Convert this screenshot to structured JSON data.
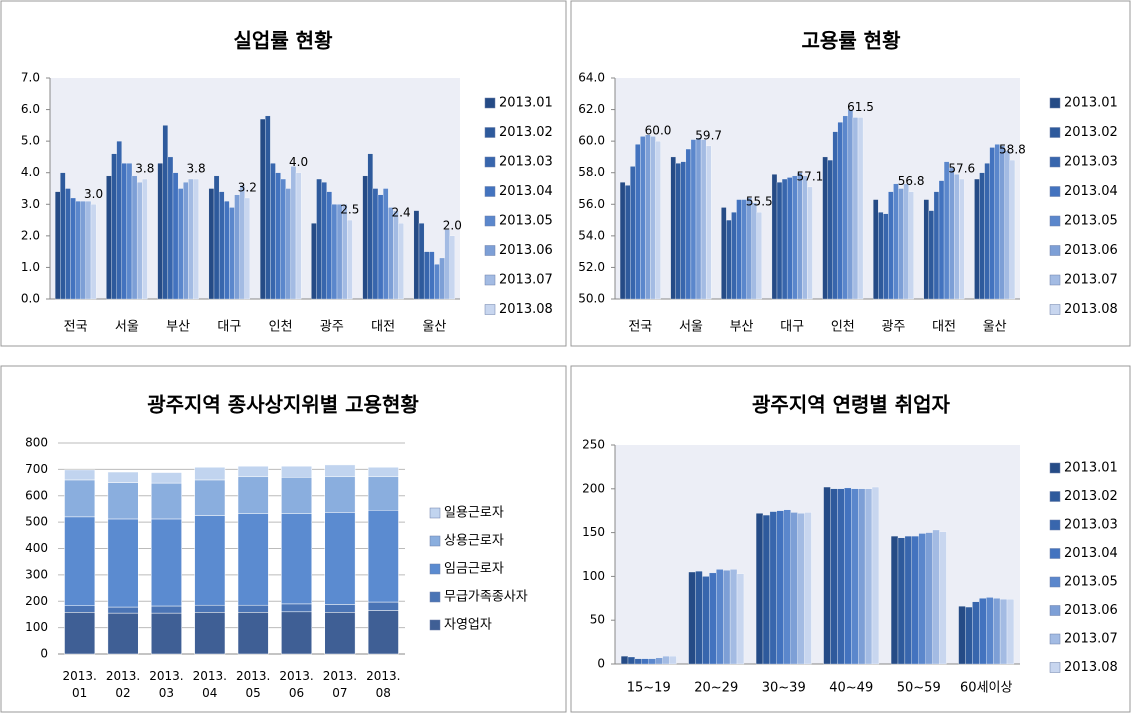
{
  "chart_data": [
    {
      "type": "bar",
      "title": "실업률 현황",
      "categories": [
        "전국",
        "서울",
        "부산",
        "대구",
        "인천",
        "광주",
        "대전",
        "울산"
      ],
      "series": [
        {
          "name": "2013.01",
          "color": "#254b86",
          "values": [
            3.4,
            3.9,
            4.3,
            3.5,
            5.7,
            2.4,
            3.9,
            2.8
          ]
        },
        {
          "name": "2013.02",
          "color": "#2e5a9c",
          "values": [
            4.0,
            4.6,
            5.5,
            3.9,
            5.8,
            3.8,
            4.6,
            2.4
          ]
        },
        {
          "name": "2013.03",
          "color": "#3866ad",
          "values": [
            3.5,
            5.0,
            4.5,
            3.4,
            4.3,
            3.7,
            3.5,
            1.5
          ]
        },
        {
          "name": "2013.04",
          "color": "#4373bf",
          "values": [
            3.2,
            4.3,
            4.0,
            3.1,
            4.0,
            3.4,
            3.3,
            1.5
          ]
        },
        {
          "name": "2013.05",
          "color": "#5b87cc",
          "values": [
            3.1,
            4.3,
            3.5,
            2.9,
            3.8,
            3.0,
            3.5,
            1.1
          ]
        },
        {
          "name": "2013.06",
          "color": "#7d9fd6",
          "values": [
            3.1,
            3.9,
            3.7,
            3.3,
            3.5,
            3.0,
            2.9,
            1.3
          ]
        },
        {
          "name": "2013.07",
          "color": "#a3bbe3",
          "values": [
            3.1,
            3.7,
            3.8,
            3.6,
            4.2,
            3.0,
            2.8,
            2.2
          ]
        },
        {
          "name": "2013.08",
          "color": "#c8d6ef",
          "values": [
            3.0,
            3.8,
            3.8,
            3.2,
            4.0,
            2.5,
            2.4,
            2.0
          ],
          "value_labels": [
            "3.0",
            "3.8",
            "3.8",
            "3.2",
            "4.0",
            "2.5",
            "2.4",
            "2.0"
          ]
        }
      ],
      "ylim": [
        0,
        7
      ],
      "yticks": [
        {
          "value": 0,
          "label": "0.0"
        },
        {
          "value": 1,
          "label": "1.0"
        },
        {
          "value": 2,
          "label": "2.0"
        },
        {
          "value": 3,
          "label": "3.0"
        },
        {
          "value": 4,
          "label": "4.0"
        },
        {
          "value": 5,
          "label": "5.0"
        },
        {
          "value": 6,
          "label": "6.0"
        },
        {
          "value": 7,
          "label": "7.0"
        }
      ],
      "legend": "right"
    },
    {
      "type": "bar",
      "title": "고용률 현황",
      "categories": [
        "전국",
        "서울",
        "부산",
        "대구",
        "인천",
        "광주",
        "대전",
        "울산"
      ],
      "series": [
        {
          "name": "2013.01",
          "color": "#254b86",
          "values": [
            57.4,
            59.0,
            55.8,
            57.9,
            59.0,
            56.3,
            56.3,
            57.6
          ]
        },
        {
          "name": "2013.02",
          "color": "#2e5a9c",
          "values": [
            57.2,
            58.6,
            55.0,
            57.4,
            58.8,
            55.5,
            55.6,
            58.0
          ]
        },
        {
          "name": "2013.03",
          "color": "#3866ad",
          "values": [
            58.4,
            58.7,
            55.5,
            57.6,
            60.6,
            55.4,
            56.8,
            58.6
          ]
        },
        {
          "name": "2013.04",
          "color": "#4373bf",
          "values": [
            59.8,
            59.5,
            56.3,
            57.7,
            61.2,
            56.8,
            57.5,
            59.6
          ]
        },
        {
          "name": "2013.05",
          "color": "#5b87cc",
          "values": [
            60.3,
            60.1,
            56.3,
            57.8,
            61.6,
            57.3,
            58.7,
            59.8
          ]
        },
        {
          "name": "2013.06",
          "color": "#7d9fd6",
          "values": [
            60.4,
            60.2,
            56.4,
            58.0,
            62.0,
            57.0,
            58.3,
            59.7
          ]
        },
        {
          "name": "2013.07",
          "color": "#a3bbe3",
          "values": [
            60.3,
            60.1,
            56.1,
            57.8,
            61.5,
            57.3,
            57.9,
            59.4
          ]
        },
        {
          "name": "2013.08",
          "color": "#c8d6ef",
          "values": [
            60.0,
            59.7,
            55.5,
            57.1,
            61.5,
            56.8,
            57.6,
            58.8
          ],
          "value_labels": [
            "60.0",
            "59.7",
            "55.5",
            "57.1",
            "61.5",
            "56.8",
            "57.6",
            "58.8"
          ]
        }
      ],
      "ylim": [
        50,
        64
      ],
      "yticks": [
        {
          "value": 50,
          "label": "50.0"
        },
        {
          "value": 52,
          "label": "52.0"
        },
        {
          "value": 54,
          "label": "54.0"
        },
        {
          "value": 56,
          "label": "56.0"
        },
        {
          "value": 58,
          "label": "58.0"
        },
        {
          "value": 60,
          "label": "60.0"
        },
        {
          "value": 62,
          "label": "62.0"
        },
        {
          "value": 64,
          "label": "64.0"
        }
      ],
      "legend": "right"
    },
    {
      "type": "bar",
      "stacked": true,
      "title": "광주지역 종사상지위별 고용현황",
      "categories": [
        "2013. 01",
        "2013. 02",
        "2013. 03",
        "2013. 04",
        "2013. 05",
        "2013. 06",
        "2013. 07",
        "2013. 08"
      ],
      "series": [
        {
          "name": "자영업자",
          "color": "#3f5f95",
          "values": [
            158,
            155,
            155,
            158,
            158,
            160,
            158,
            165
          ]
        },
        {
          "name": "무급가족종사자",
          "color": "#4a74b5",
          "values": [
            25,
            23,
            27,
            27,
            27,
            30,
            30,
            32
          ]
        },
        {
          "name": "임금근로자",
          "color": "#5b8bd0",
          "values": [
            337,
            334,
            330,
            340,
            347,
            342,
            349,
            348
          ]
        },
        {
          "name": "상용근로자",
          "color": "#8aaede",
          "values": [
            140,
            138,
            136,
            135,
            140,
            138,
            135,
            127
          ]
        },
        {
          "name": "일용근로자",
          "color": "#c1d4ef",
          "values": [
            38,
            40,
            40,
            48,
            40,
            42,
            45,
            36
          ]
        }
      ],
      "ylim": [
        0,
        800
      ],
      "yticks": [
        0,
        100,
        200,
        300,
        400,
        500,
        600,
        700,
        800
      ],
      "grid": true,
      "legend": "right"
    },
    {
      "type": "bar",
      "title": "광주지역 연령별 취업자",
      "categories": [
        "15~19",
        "20~29",
        "30~39",
        "40~49",
        "50~59",
        "60세이상"
      ],
      "series": [
        {
          "name": "2013.01",
          "color": "#254b86",
          "values": [
            9,
            105,
            172,
            202,
            146,
            66
          ]
        },
        {
          "name": "2013.02",
          "color": "#2e5a9c",
          "values": [
            8,
            106,
            170,
            200,
            144,
            65
          ]
        },
        {
          "name": "2013.03",
          "color": "#3866ad",
          "values": [
            6,
            100,
            174,
            200,
            146,
            71
          ]
        },
        {
          "name": "2013.04",
          "color": "#4373bf",
          "values": [
            6,
            104,
            175,
            201,
            146,
            75
          ]
        },
        {
          "name": "2013.05",
          "color": "#5b87cc",
          "values": [
            6,
            108,
            176,
            200,
            149,
            76
          ]
        },
        {
          "name": "2013.06",
          "color": "#7d9fd6",
          "values": [
            7,
            107,
            173,
            200,
            150,
            75
          ]
        },
        {
          "name": "2013.07",
          "color": "#a3bbe3",
          "values": [
            9,
            108,
            172,
            200,
            153,
            74
          ]
        },
        {
          "name": "2013.08",
          "color": "#c8d6ef",
          "values": [
            9,
            103,
            173,
            202,
            151,
            74
          ]
        }
      ],
      "ylim": [
        0,
        250
      ],
      "yticks": [
        0,
        50,
        100,
        150,
        200,
        250
      ],
      "legend": "right"
    }
  ]
}
